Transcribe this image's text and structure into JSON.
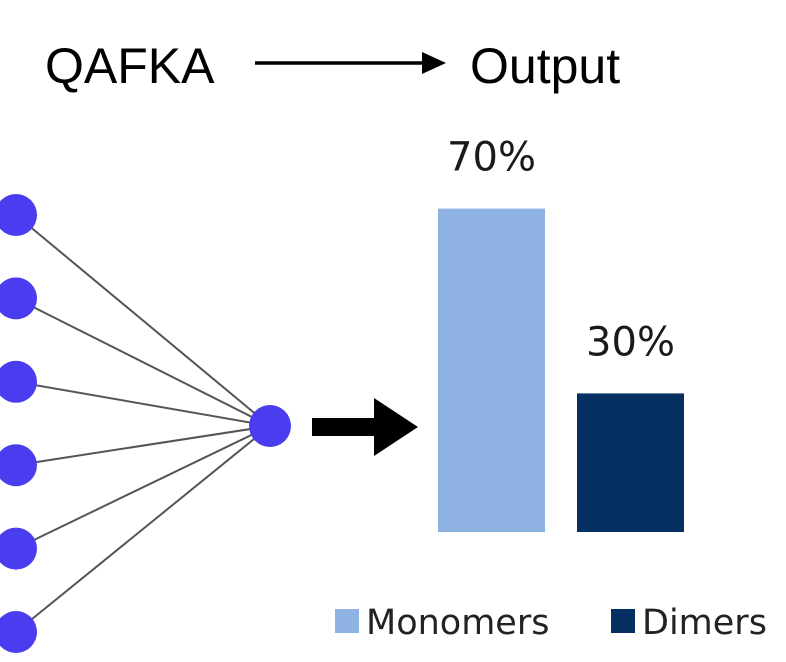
{
  "header": {
    "model_label": "QAFKA",
    "output_label": "Output"
  },
  "network": {
    "input_node_count": 6,
    "node_color": "#4a3df0",
    "edge_color": "#555555"
  },
  "chart_data": {
    "type": "bar",
    "categories": [
      "Monomers",
      "Dimers"
    ],
    "values": [
      70,
      30
    ],
    "value_labels": [
      "70%",
      "30%"
    ],
    "colors": [
      "#8eb2e2",
      "#063061"
    ],
    "legend": [
      "Monomers",
      "Dimers"
    ],
    "legend_position": "bottom",
    "ylim": [
      0,
      100
    ],
    "grid": false,
    "axes_visible": false
  }
}
